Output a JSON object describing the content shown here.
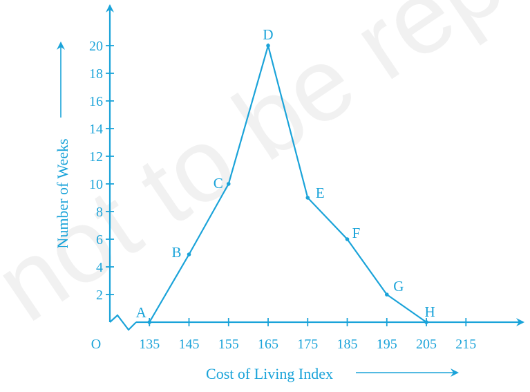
{
  "chart_data": {
    "type": "line",
    "title": "",
    "xlabel": "Cost of Living Index",
    "ylabel": "Number of Weeks",
    "origin_label": "O",
    "x_ticks": [
      135,
      145,
      155,
      165,
      175,
      185,
      195,
      205,
      215
    ],
    "y_ticks": [
      2,
      4,
      6,
      8,
      10,
      12,
      14,
      16,
      18,
      20
    ],
    "xlim": [
      125,
      227
    ],
    "ylim": [
      0,
      22
    ],
    "axis_break_on_x": true,
    "grid": false,
    "color": "#1aa3d9",
    "points": [
      {
        "label": "A",
        "x": 135,
        "y": 0
      },
      {
        "label": "B",
        "x": 145,
        "y": 4.9
      },
      {
        "label": "C",
        "x": 155,
        "y": 10
      },
      {
        "label": "D",
        "x": 165,
        "y": 20
      },
      {
        "label": "E",
        "x": 175,
        "y": 9
      },
      {
        "label": "F",
        "x": 185,
        "y": 6
      },
      {
        "label": "G",
        "x": 195,
        "y": 2
      },
      {
        "label": "H",
        "x": 205,
        "y": 0
      }
    ]
  },
  "watermark": "not to be republished",
  "watermark_color": "#000000"
}
